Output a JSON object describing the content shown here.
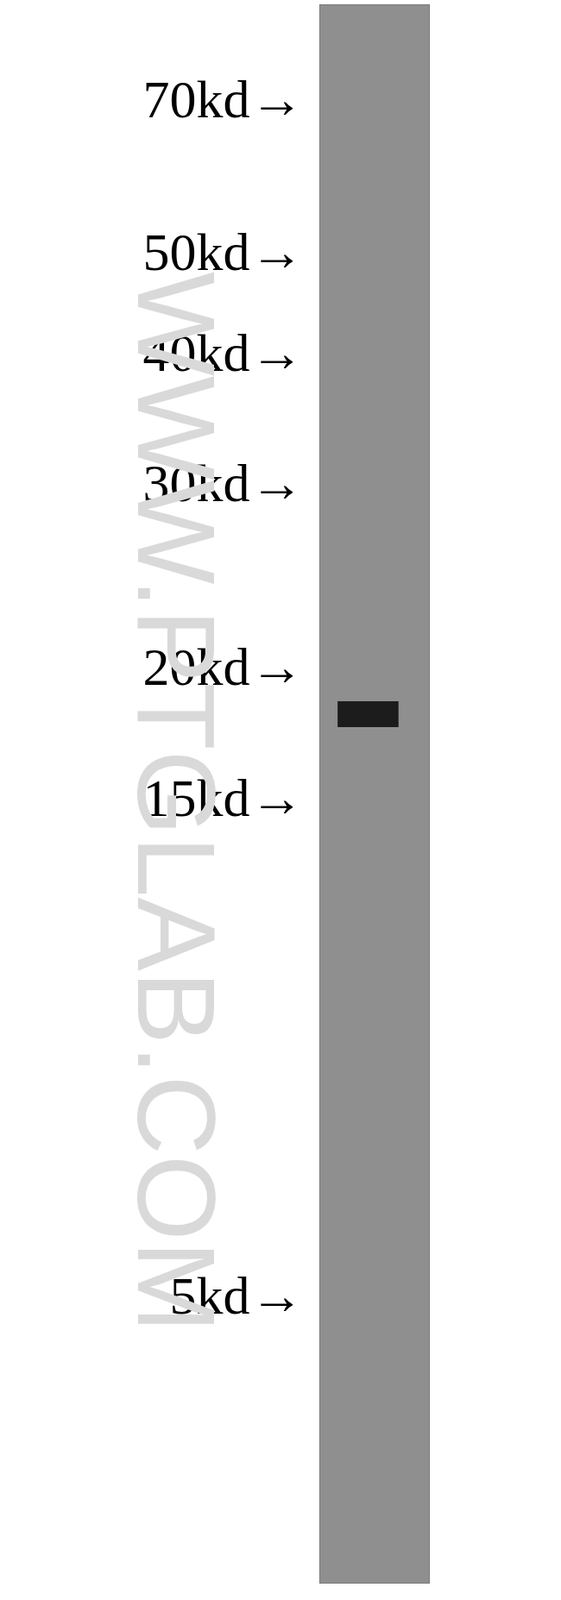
{
  "chart_data": {
    "type": "western_blot",
    "annotations": [
      "WWW.PTGLAB.COM"
    ],
    "values": [
      18
    ],
    "color": "#1c1c1c",
    "log": "y",
    "ylim": [
      2.65,
      86
    ],
    "yticks": [
      {
        "value": 70,
        "label": "70kd→"
      },
      {
        "value": 50,
        "label": "50kd→"
      },
      {
        "value": 40,
        "label": "40kd→"
      },
      {
        "value": 30,
        "label": "30kd→"
      },
      {
        "value": 20,
        "label": "20kd→"
      },
      {
        "value": 15,
        "label": "15kd→"
      },
      {
        "value": 5,
        "label": "5kd→"
      }
    ],
    "xlim": [
      0,
      1
    ],
    "grid": false,
    "tick_labels": "y"
  }
}
